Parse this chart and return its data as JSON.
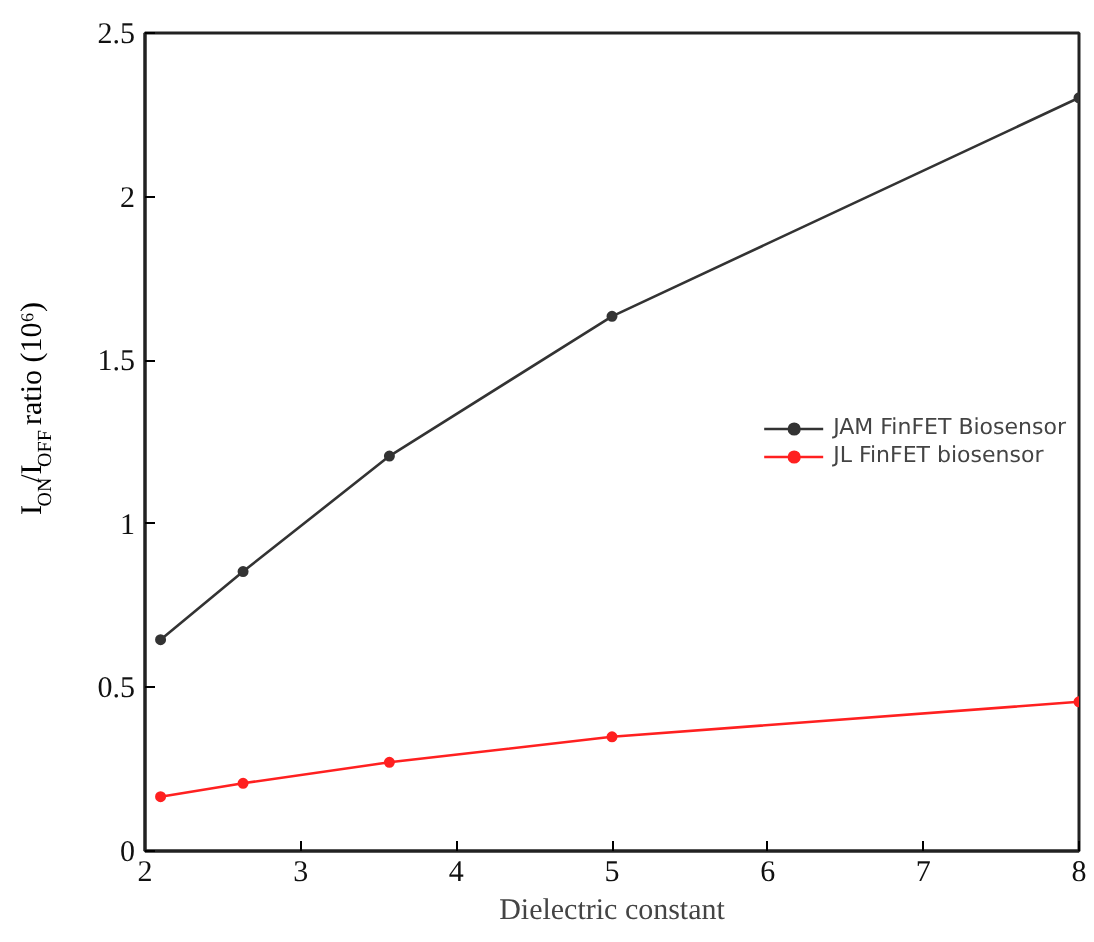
{
  "chart_data": {
    "type": "line",
    "xlabel": "Dielectric constant",
    "ylabel": "I$_{ON}$/I$_{OFF}$ ratio (10⁶)",
    "x": [
      2.1,
      2.63,
      3.57,
      5,
      8
    ],
    "series": [
      {
        "name": "JAM FinFET Biosensor",
        "color": "#333333",
        "values": [
          0.646,
          0.854,
          1.207,
          1.634,
          2.302
        ]
      },
      {
        "name": "JL FinFET biosensor",
        "color": "#ff2020",
        "values": [
          0.166,
          0.207,
          0.271,
          0.349,
          0.456
        ]
      }
    ],
    "xlim": [
      2,
      8
    ],
    "ylim": [
      0,
      2.5
    ],
    "xticks": [
      2,
      3,
      4,
      5,
      6,
      7,
      8
    ],
    "yticks": [
      0,
      0.5,
      1,
      1.5,
      2,
      2.5
    ],
    "marker": "circle",
    "line_style": "solid",
    "legend": "right",
    "grid": false
  }
}
